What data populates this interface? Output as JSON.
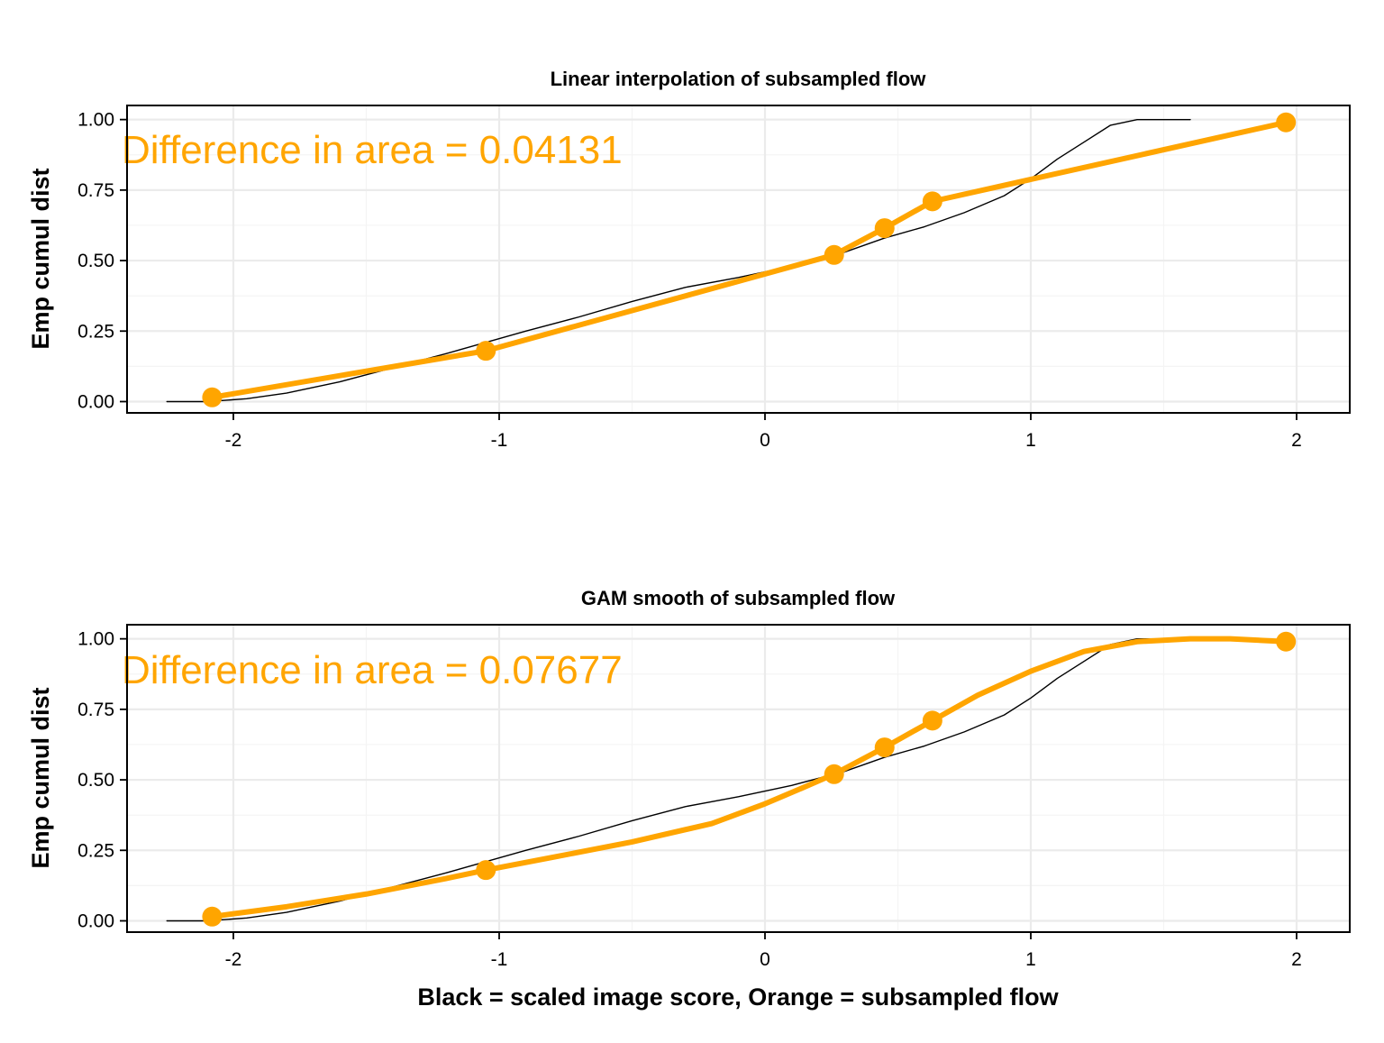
{
  "colors": {
    "reference": "#000000",
    "subsampled": "#FFA500",
    "grid": "#ebebeb",
    "background": "#ffffff"
  },
  "chart_data": [
    {
      "id": "linear",
      "type": "line",
      "title": "Linear interpolation of subsampled flow",
      "xlabel": "",
      "ylabel": "Emp cumul dist",
      "xlim": [
        -2.4,
        2.2
      ],
      "ylim": [
        -0.04,
        1.05
      ],
      "xticks": [
        -2,
        -1,
        0,
        1,
        2
      ],
      "xtick_labels": [
        "-2",
        "-1",
        "0",
        "1",
        "2"
      ],
      "yticks": [
        0,
        0.25,
        0.5,
        0.75,
        1.0
      ],
      "ytick_labels": [
        "0.00",
        "0.25",
        "0.50",
        "0.75",
        "1.00"
      ],
      "grid": true,
      "annotation": "Difference in area = 0.04131",
      "series": [
        {
          "kind": "reference",
          "x": [
            -2.25,
            -2.1,
            -1.95,
            -1.8,
            -1.6,
            -1.4,
            -1.2,
            -1.05,
            -0.9,
            -0.7,
            -0.5,
            -0.3,
            -0.1,
            0.1,
            0.3,
            0.45,
            0.6,
            0.75,
            0.9,
            1.0,
            1.1,
            1.2,
            1.3,
            1.4,
            1.5,
            1.6
          ],
          "y": [
            0.0,
            0.0,
            0.01,
            0.03,
            0.07,
            0.12,
            0.17,
            0.21,
            0.25,
            0.3,
            0.355,
            0.405,
            0.44,
            0.48,
            0.53,
            0.58,
            0.62,
            0.67,
            0.73,
            0.79,
            0.86,
            0.92,
            0.98,
            1.0,
            1.0,
            1.0
          ]
        },
        {
          "kind": "subsampled",
          "x": [
            -2.08,
            -1.05,
            0.26,
            0.45,
            0.63,
            1.96
          ],
          "y": [
            0.015,
            0.18,
            0.52,
            0.615,
            0.71,
            0.99
          ],
          "points_x": [
            -2.08,
            -1.05,
            0.26,
            0.45,
            0.63,
            1.96
          ],
          "points_y": [
            0.015,
            0.18,
            0.52,
            0.615,
            0.71,
            0.99
          ]
        }
      ]
    },
    {
      "id": "gam",
      "type": "line",
      "title": "GAM smooth of subsampled flow",
      "xlabel": "Black = scaled image score, Orange = subsampled flow",
      "ylabel": "Emp cumul dist",
      "xlim": [
        -2.4,
        2.2
      ],
      "ylim": [
        -0.04,
        1.05
      ],
      "xticks": [
        -2,
        -1,
        0,
        1,
        2
      ],
      "xtick_labels": [
        "-2",
        "-1",
        "0",
        "1",
        "2"
      ],
      "yticks": [
        0,
        0.25,
        0.5,
        0.75,
        1.0
      ],
      "ytick_labels": [
        "0.00",
        "0.25",
        "0.50",
        "0.75",
        "1.00"
      ],
      "grid": true,
      "annotation": "Difference in area = 0.07677",
      "series": [
        {
          "kind": "reference",
          "x": [
            -2.25,
            -2.1,
            -1.95,
            -1.8,
            -1.6,
            -1.4,
            -1.2,
            -1.05,
            -0.9,
            -0.7,
            -0.5,
            -0.3,
            -0.1,
            0.1,
            0.3,
            0.45,
            0.6,
            0.75,
            0.9,
            1.0,
            1.1,
            1.2,
            1.3,
            1.4,
            1.5,
            1.6
          ],
          "y": [
            0.0,
            0.0,
            0.01,
            0.03,
            0.07,
            0.12,
            0.17,
            0.21,
            0.25,
            0.3,
            0.355,
            0.405,
            0.44,
            0.48,
            0.53,
            0.58,
            0.62,
            0.67,
            0.73,
            0.79,
            0.86,
            0.92,
            0.98,
            1.0,
            1.0,
            1.0
          ]
        },
        {
          "kind": "subsampled",
          "x": [
            -2.08,
            -1.8,
            -1.5,
            -1.2,
            -1.05,
            -0.8,
            -0.5,
            -0.2,
            0.0,
            0.15,
            0.26,
            0.45,
            0.63,
            0.8,
            1.0,
            1.2,
            1.4,
            1.6,
            1.75,
            1.96
          ],
          "y": [
            0.015,
            0.05,
            0.095,
            0.15,
            0.18,
            0.225,
            0.28,
            0.345,
            0.415,
            0.475,
            0.52,
            0.615,
            0.71,
            0.8,
            0.885,
            0.955,
            0.99,
            1.0,
            1.0,
            0.99
          ],
          "points_x": [
            -2.08,
            -1.05,
            0.26,
            0.45,
            0.63,
            1.96
          ],
          "points_y": [
            0.015,
            0.18,
            0.52,
            0.615,
            0.71,
            0.99
          ]
        }
      ]
    }
  ]
}
